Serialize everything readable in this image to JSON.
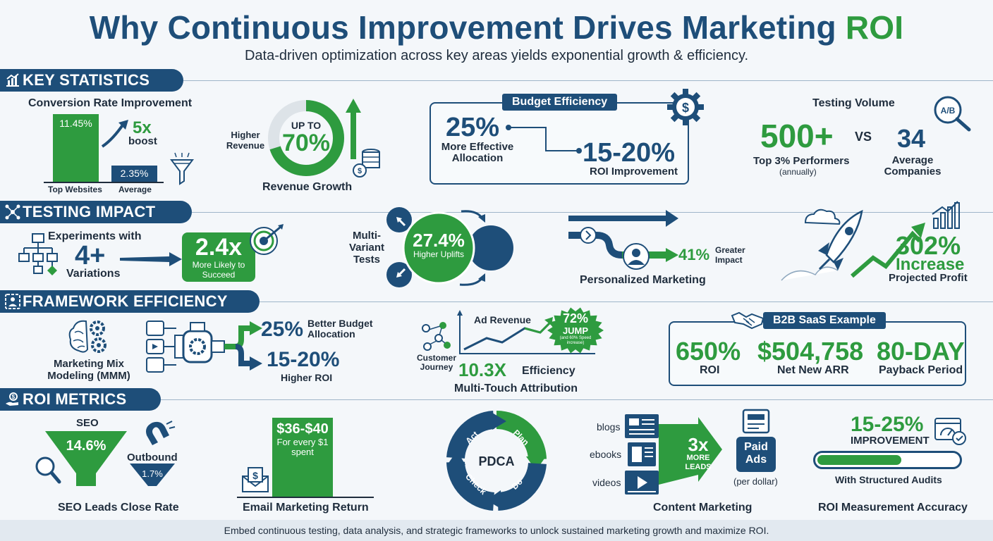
{
  "header": {
    "title_main": "Why Continuous Improvement Drives Marketing",
    "title_accent": "ROI",
    "subtitle": "Data-driven optimization across key areas yields exponential growth & efficiency."
  },
  "sections": {
    "key_statistics": "KEY STATISTICS",
    "testing_impact": "TESTING IMPACT",
    "framework_efficiency": "FRAMEWORK EFFICIENCY",
    "roi_metrics": "ROI METRICS"
  },
  "key_stats": {
    "conversion": {
      "title": "Conversion Rate Improvement",
      "top_value": "11.45%",
      "avg_value": "2.35%",
      "top_label": "Top Websites",
      "avg_label": "Average",
      "boost_value": "5x",
      "boost_label": "boost"
    },
    "revenue": {
      "pre": "UP TO",
      "value": "70%",
      "side_label": "Higher Revenue",
      "caption": "Revenue Growth"
    },
    "budget": {
      "tag": "Budget Efficiency",
      "left_value": "25%",
      "left_label": "More Effective Allocation",
      "right_value": "15-20%",
      "right_label": "ROI Improvement"
    },
    "testing_volume": {
      "title": "Testing Volume",
      "left_value": "500+",
      "left_label": "Top 3% Performers",
      "left_sub": "(annually)",
      "vs": "VS",
      "right_value": "34",
      "right_label": "Average Companies",
      "icon_text": "A/B"
    }
  },
  "testing_impact": {
    "experiments_label": "Experiments with",
    "experiments_value": "4+",
    "variations_label": "Variations",
    "succeed_value": "2.4x",
    "succeed_label": "More Likely to Succeed",
    "mvt_label": "Multi-Variant Tests",
    "mvt_value": "27.4%",
    "mvt_sub": "Higher Uplifts",
    "personalized_value": "41%",
    "personalized_label": "Greater Impact",
    "personalized_caption": "Personalized Marketing",
    "profit_value": "302%",
    "profit_label": "Increase",
    "profit_caption": "Projected Profit"
  },
  "framework": {
    "mmm_label": "Marketing Mix Modeling (MMM)",
    "budget_value": "25%",
    "budget_label": "Better Budget Allocation",
    "roi_value": "15-20%",
    "roi_label": "Higher ROI",
    "ad_revenue": "Ad Revenue",
    "customer_journey": "Customer Journey",
    "jump_value": "72%",
    "jump_label": "JUMP",
    "jump_sub": "(and 60% Speed increase)",
    "efficiency_value": "10.3X",
    "efficiency_label": "Efficiency",
    "mta_label": "Multi-Touch Attribution",
    "saas_tag": "B2B SaaS Example",
    "saas_roi_value": "650%",
    "saas_roi_label": "ROI",
    "saas_arr_value": "$504,758",
    "saas_arr_label": "Net New ARR",
    "saas_payback_value": "80-DAY",
    "saas_payback_label": "Payback Period"
  },
  "roi_metrics": {
    "seo_title": "SEO",
    "seo_value": "14.6%",
    "outbound_title": "Outbound",
    "outbound_value": "1.7%",
    "seo_caption": "SEO Leads Close Rate",
    "email_value": "$36-$40",
    "email_sub": "For every $1 spent",
    "email_caption": "Email Marketing Return",
    "pdca_center": "PDCA",
    "pdca_plan": "Plan",
    "pdca_do": "Do",
    "pdca_check": "Check",
    "pdca_act": "Act",
    "content_blogs": "blogs",
    "content_ebooks": "ebooks",
    "content_videos": "videos",
    "content_multiplier": "3x",
    "content_more": "MORE",
    "content_leads": "LEADS",
    "paid_ads": "Paid Ads",
    "per_dollar": "(per dollar)",
    "content_caption": "Content Marketing",
    "audit_value": "15-25%",
    "audit_label": "IMPROVEMENT",
    "audit_progress": 0.6,
    "audit_sub": "With Structured Audits",
    "audit_caption": "ROI Measurement Accuracy"
  },
  "footer": {
    "text": "Embed continuous testing, data analysis, and strategic frameworks to unlock sustained marketing growth and maximize ROI."
  },
  "colors": {
    "navy": "#1e4e79",
    "green": "#2e9b3f",
    "background": "#f4f7fa"
  },
  "icons": [
    "chart-icon",
    "network-icon",
    "framework-icon",
    "money-hand-icon",
    "funnel-icon",
    "coins-icon",
    "gear-dollar-icon",
    "magnifier-ab-icon",
    "flowchart-icon",
    "target-icon",
    "rocket-icon",
    "cloud-icon",
    "bar-chart-icon",
    "brain-gears-icon",
    "pipe-icon",
    "handshake-icon",
    "magnet-icon",
    "envelope-dollar-icon",
    "document-icon",
    "dashboard-icon",
    "person-icon"
  ]
}
